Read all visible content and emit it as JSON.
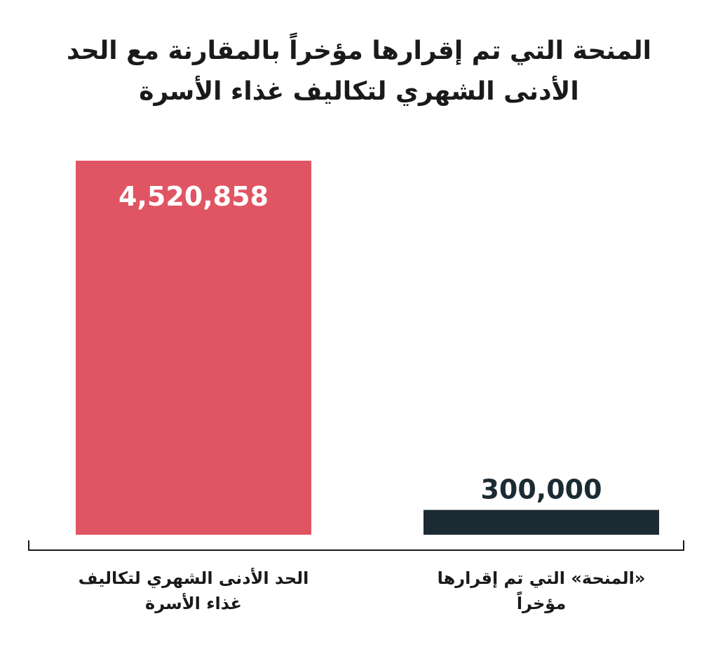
{
  "chart_data": {
    "type": "bar",
    "title": "المنحة التي تم إقرارها مؤخراً بالمقارنة مع الحد الأدنى الشهري لتكاليف غذاء الأسرة",
    "categories": [
      "الحد الأدنى الشهري لتكاليف غذاء الأسرة",
      "«المنحة» التي تم إقرارها مؤخراً"
    ],
    "values": [
      4520858,
      300000
    ],
    "value_labels": [
      "4,520,858",
      "300,000"
    ],
    "colors": [
      "#e05563",
      "#1c2b33"
    ],
    "value_label_colors": [
      "#ffffff",
      "#1c2b33"
    ],
    "value_label_positions": [
      "inside-top",
      "above"
    ],
    "ylim": [
      0,
      4520858
    ],
    "grid": false,
    "legend": "none"
  }
}
